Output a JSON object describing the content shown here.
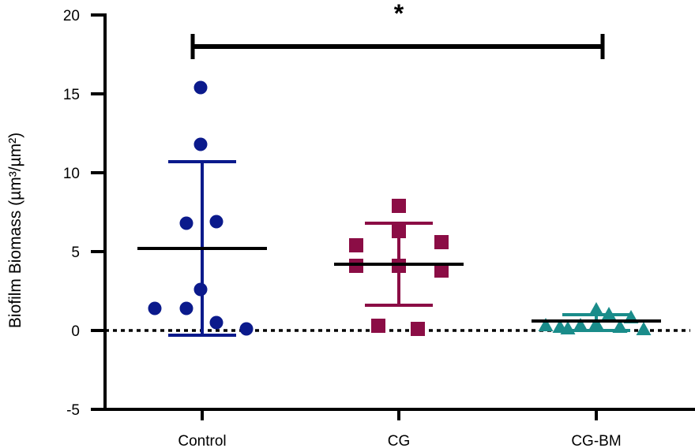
{
  "chart_data": {
    "type": "scatter",
    "title": "",
    "xlabel": "",
    "ylabel": "Biofilm Biomass (µm³/µm²)",
    "ylim": [
      -5,
      20
    ],
    "yticks": [
      "-5",
      "0",
      "5",
      "10",
      "15",
      "20"
    ],
    "grid": false,
    "reference_line": {
      "y": 0,
      "style": "dotted"
    },
    "categories": [
      "Control",
      "CG",
      "CG-BM"
    ],
    "colors": {
      "Control": "#0b1a8c",
      "CG": "#8b0d45",
      "CG-BM": "#1a8c8a",
      "mean_line": "#000000"
    },
    "markers": {
      "Control": "circle-icon",
      "CG": "square-icon",
      "CG-BM": "triangle-icon"
    },
    "groups": [
      {
        "category": "Control",
        "points": [
          {
            "offset": -0.3,
            "y": 1.4
          },
          {
            "offset": -0.1,
            "y": 1.4
          },
          {
            "offset": -0.1,
            "y": 6.8
          },
          {
            "offset": -0.01,
            "y": 15.4
          },
          {
            "offset": -0.01,
            "y": 11.8
          },
          {
            "offset": -0.01,
            "y": 2.6
          },
          {
            "offset": 0.09,
            "y": 6.9
          },
          {
            "offset": 0.09,
            "y": 0.5
          },
          {
            "offset": 0.28,
            "y": 0.1
          }
        ],
        "mean": 5.2,
        "sd_upper": 10.7,
        "sd_lower": -0.3
      },
      {
        "category": "CG",
        "points": [
          {
            "offset": -0.27,
            "y": 5.4
          },
          {
            "offset": -0.27,
            "y": 4.1
          },
          {
            "offset": 0.0,
            "y": 7.9
          },
          {
            "offset": 0.0,
            "y": 6.3
          },
          {
            "offset": 0.0,
            "y": 4.1
          },
          {
            "offset": -0.13,
            "y": 0.3
          },
          {
            "offset": 0.12,
            "y": 0.1
          },
          {
            "offset": 0.27,
            "y": 5.6
          },
          {
            "offset": 0.27,
            "y": 3.8
          }
        ],
        "mean": 4.2,
        "sd_upper": 6.8,
        "sd_lower": 1.6
      },
      {
        "category": "CG-BM",
        "points": [
          {
            "offset": -0.32,
            "y": 0.3
          },
          {
            "offset": -0.23,
            "y": 0.2
          },
          {
            "offset": -0.18,
            "y": 0.1
          },
          {
            "offset": -0.1,
            "y": 0.3
          },
          {
            "offset": 0.0,
            "y": 1.3
          },
          {
            "offset": 0.0,
            "y": 0.4
          },
          {
            "offset": 0.08,
            "y": 1.0
          },
          {
            "offset": 0.15,
            "y": 0.2
          },
          {
            "offset": 0.22,
            "y": 0.8
          },
          {
            "offset": 0.3,
            "y": 0.05
          }
        ],
        "mean": 0.6,
        "sd_upper": 1.0,
        "sd_lower": 0.0
      }
    ],
    "significance": {
      "from": "Control",
      "to": "CG-BM",
      "y": 18,
      "label": "*"
    }
  }
}
